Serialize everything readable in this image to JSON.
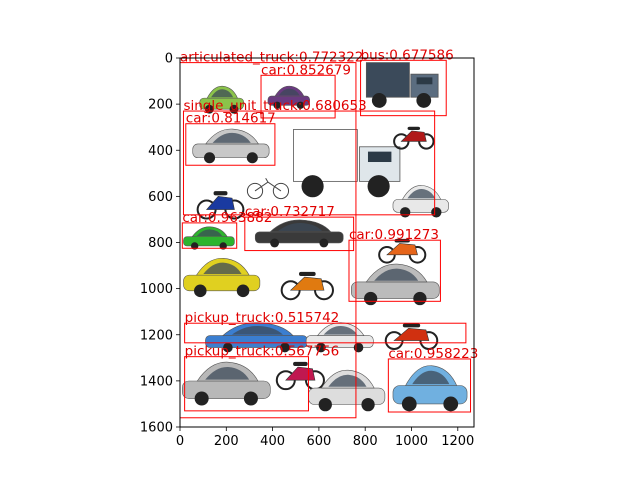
{
  "axes": {
    "x_ticks": [
      0,
      200,
      400,
      600,
      800,
      1000,
      1200
    ],
    "y_ticks": [
      0,
      200,
      400,
      600,
      800,
      1000,
      1200,
      1400,
      1600
    ],
    "xlim": [
      0,
      1270
    ],
    "ylim": [
      1600,
      0
    ],
    "box_color": "#ff0000",
    "label_color": "#e00000"
  },
  "detections": [
    {
      "label": "articulated_truck:0.772322",
      "x1": 0,
      "y1": 20,
      "x2": 760,
      "y2": 1560
    },
    {
      "label": "car:0.852679",
      "x1": 350,
      "y1": 75,
      "x2": 670,
      "y2": 260
    },
    {
      "label": "bus:0.677586",
      "x1": 780,
      "y1": 10,
      "x2": 1150,
      "y2": 250
    },
    {
      "label": "single_unit_truck:0.680653",
      "x1": 15,
      "y1": 230,
      "x2": 1100,
      "y2": 680
    },
    {
      "label": "car:0.814617",
      "x1": 25,
      "y1": 285,
      "x2": 410,
      "y2": 465
    },
    {
      "label": "car:0.963882",
      "x1": 10,
      "y1": 715,
      "x2": 245,
      "y2": 825
    },
    {
      "label": "car:0.732717",
      "x1": 280,
      "y1": 690,
      "x2": 750,
      "y2": 835
    },
    {
      "label": "car:0.991273",
      "x1": 730,
      "y1": 790,
      "x2": 1125,
      "y2": 1055
    },
    {
      "label": "pickup_truck:0.515742",
      "x1": 20,
      "y1": 1150,
      "x2": 1235,
      "y2": 1235
    },
    {
      "label": "pickup_truck:0.567756",
      "x1": 20,
      "y1": 1295,
      "x2": 555,
      "y2": 1530
    },
    {
      "label": "car:0.958223",
      "x1": 900,
      "y1": 1305,
      "x2": 1255,
      "y2": 1535
    }
  ],
  "photos": [
    {
      "kind": "car",
      "color": "#8bc34a",
      "x": 180,
      "y": 180,
      "w": 190,
      "h": 120
    },
    {
      "kind": "car",
      "color": "#6a3a80",
      "x": 470,
      "y": 170,
      "w": 180,
      "h": 100
    },
    {
      "kind": "truck",
      "color": "#3b4a5a",
      "x": 960,
      "y": 120,
      "w": 310,
      "h": 200
    },
    {
      "kind": "car",
      "color": "#c8c8c8",
      "x": 220,
      "y": 380,
      "w": 330,
      "h": 150
    },
    {
      "kind": "truck",
      "color": "#ffffff",
      "x": 720,
      "y": 460,
      "w": 460,
      "h": 300
    },
    {
      "kind": "moto",
      "color": "#b01818",
      "x": 1010,
      "y": 340,
      "w": 180,
      "h": 120
    },
    {
      "kind": "bike",
      "color": "#777777",
      "x": 380,
      "y": 560,
      "w": 200,
      "h": 110
    },
    {
      "kind": "moto",
      "color": "#1a3aa0",
      "x": 175,
      "y": 630,
      "w": 200,
      "h": 150
    },
    {
      "kind": "car",
      "color": "#e8e8e8",
      "x": 1040,
      "y": 620,
      "w": 240,
      "h": 140
    },
    {
      "kind": "car",
      "color": "#2db42d",
      "x": 125,
      "y": 780,
      "w": 220,
      "h": 100
    },
    {
      "kind": "car",
      "color": "#3a3a3a",
      "x": 515,
      "y": 760,
      "w": 380,
      "h": 120
    },
    {
      "kind": "moto",
      "color": "#e6651a",
      "x": 960,
      "y": 830,
      "w": 220,
      "h": 130
    },
    {
      "kind": "car",
      "color": "#e0d020",
      "x": 180,
      "y": 950,
      "w": 330,
      "h": 170
    },
    {
      "kind": "moto",
      "color": "#e07a10",
      "x": 550,
      "y": 980,
      "w": 240,
      "h": 150
    },
    {
      "kind": "car",
      "color": "#bbbbbb",
      "x": 930,
      "y": 980,
      "w": 380,
      "h": 180
    },
    {
      "kind": "car",
      "color": "#3b7ed0",
      "x": 330,
      "y": 1210,
      "w": 440,
      "h": 130
    },
    {
      "kind": "car",
      "color": "#e8e8e8",
      "x": 690,
      "y": 1210,
      "w": 290,
      "h": 130
    },
    {
      "kind": "moto",
      "color": "#d03010",
      "x": 1000,
      "y": 1200,
      "w": 250,
      "h": 140
    },
    {
      "kind": "car",
      "color": "#b8b8b8",
      "x": 200,
      "y": 1410,
      "w": 380,
      "h": 190
    },
    {
      "kind": "moto",
      "color": "#c01850",
      "x": 520,
      "y": 1370,
      "w": 210,
      "h": 150
    },
    {
      "kind": "car",
      "color": "#dddddd",
      "x": 720,
      "y": 1440,
      "w": 330,
      "h": 180
    },
    {
      "kind": "car",
      "color": "#70b0e0",
      "x": 1080,
      "y": 1430,
      "w": 320,
      "h": 200
    }
  ]
}
